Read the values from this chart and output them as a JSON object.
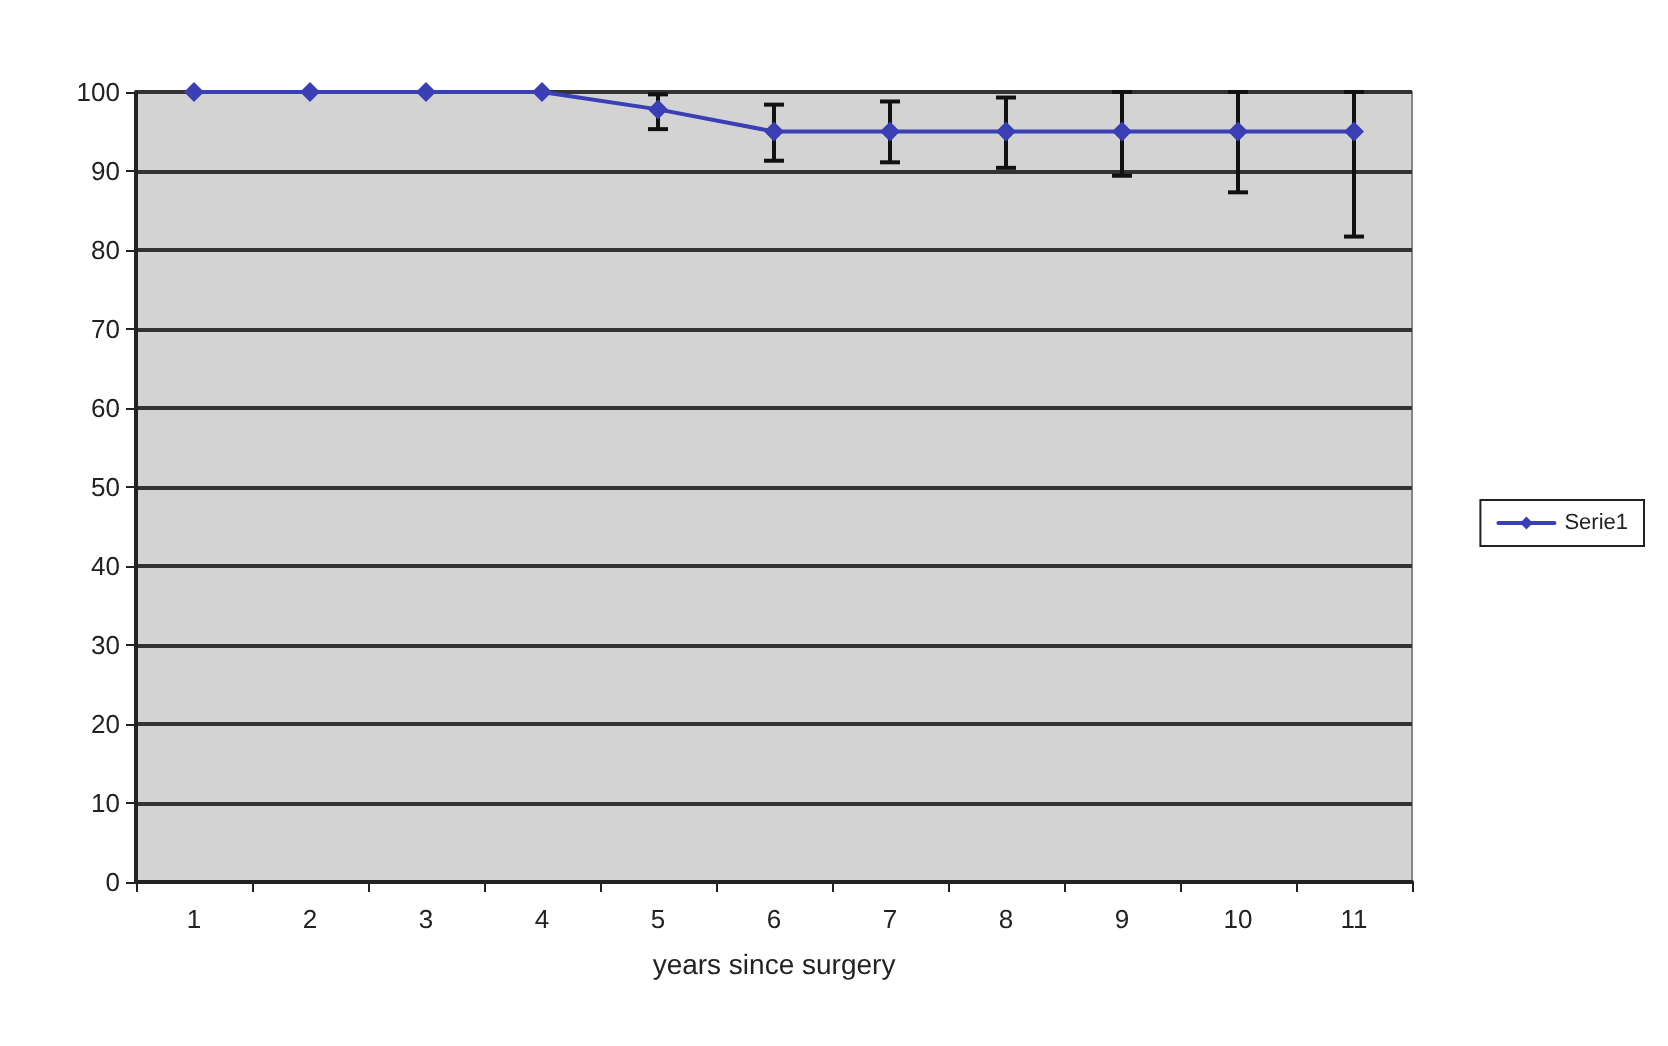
{
  "chart_data": {
    "type": "line",
    "xlabel": "years since surgery",
    "categories": [
      "1",
      "2",
      "3",
      "4",
      "5",
      "6",
      "7",
      "8",
      "9",
      "10",
      "11"
    ],
    "series": [
      {
        "name": "Serie1",
        "color": "#3a3fb5",
        "values": [
          100,
          100,
          100,
          100,
          97.8,
          95,
          95,
          95,
          95,
          95,
          95
        ],
        "errors": [
          null,
          null,
          null,
          null,
          [
            95.3,
            99.7
          ],
          [
            91.3,
            98.4
          ],
          [
            91.1,
            98.8
          ],
          [
            90.4,
            99.3
          ],
          [
            89.4,
            100
          ],
          [
            87.3,
            100
          ],
          [
            81.7,
            100
          ]
        ]
      }
    ],
    "ylim": [
      0,
      100
    ],
    "yticks": [
      0,
      10,
      20,
      30,
      40,
      50,
      60,
      70,
      80,
      90,
      100
    ],
    "grid": "y",
    "legend": "right",
    "marker": "diamond",
    "line_style": "solid"
  }
}
